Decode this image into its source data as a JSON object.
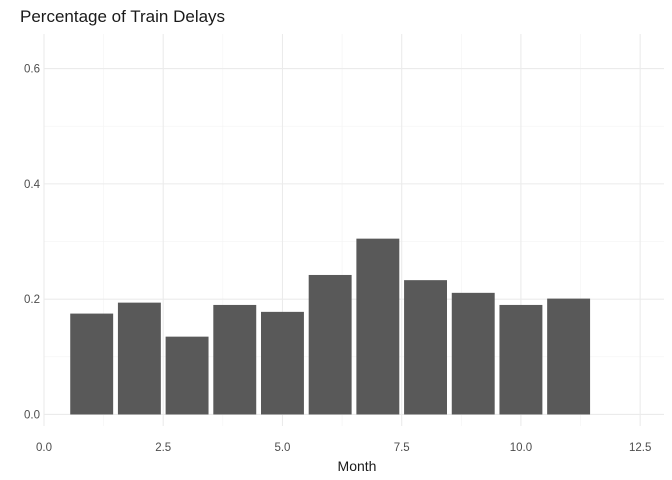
{
  "chart_data": {
    "type": "bar",
    "title": "Percentage of Train Delays",
    "xlabel": "Month",
    "ylabel": "",
    "x": [
      1,
      2,
      3,
      4,
      5,
      6,
      7,
      8,
      9,
      10,
      11
    ],
    "values": [
      0.175,
      0.194,
      0.135,
      0.19,
      0.178,
      0.242,
      0.305,
      0.233,
      0.211,
      0.19,
      0.201
    ],
    "bar_width": 0.9,
    "xlim": [
      0,
      13
    ],
    "ylim": [
      -0.02,
      0.66
    ],
    "xticks": [
      0.0,
      2.5,
      5.0,
      7.5,
      10.0,
      12.5
    ],
    "xtick_labels": [
      "0.0",
      "2.5",
      "5.0",
      "7.5",
      "10.0",
      "12.5"
    ],
    "yticks": [
      0.0,
      0.2,
      0.4,
      0.6
    ],
    "ytick_labels": [
      "0.0",
      "0.2",
      "0.4",
      "0.6"
    ],
    "bar_color": "#595959",
    "grid": true,
    "legend": "none"
  }
}
